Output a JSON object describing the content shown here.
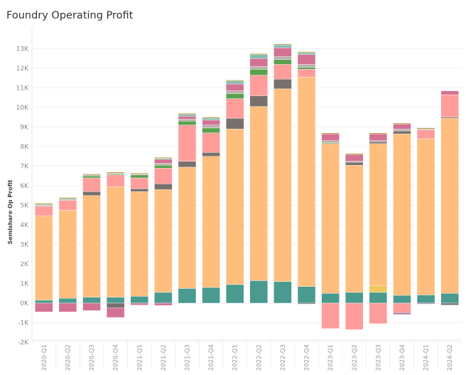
{
  "title": "Foundry Operating Profit",
  "chart_data": {
    "type": "bar",
    "stacked": true,
    "title": "Foundry Operating Profit",
    "xlabel": "",
    "ylabel": "Semishare Op Profit",
    "ylim": [
      -2000,
      13500
    ],
    "yticks": [
      -2000,
      -1000,
      0,
      1000,
      2000,
      3000,
      4000,
      5000,
      6000,
      7000,
      8000,
      9000,
      10000,
      11000,
      12000,
      13000
    ],
    "ytick_labels": [
      "-2K",
      "-1K",
      "0K",
      "1K",
      "2K",
      "3K",
      "4K",
      "5K",
      "6K",
      "7K",
      "8K",
      "9K",
      "10K",
      "11K",
      "12K",
      "13K"
    ],
    "grid": true,
    "legend": "none",
    "categories": [
      "2020-Q1",
      "2020-Q2",
      "2020-Q3",
      "2020-Q4",
      "2021-Q1",
      "2021-Q2",
      "2021-Q3",
      "2021-Q4",
      "2022-Q1",
      "2022-Q2",
      "2022-Q3",
      "2022-Q4",
      "2023-Q1",
      "2023-Q2",
      "2023-Q3",
      "2023-Q4",
      "2024-Q1",
      "2024-Q2"
    ],
    "series": [
      {
        "color": "#4a9a8f",
        "values": [
          150,
          250,
          300,
          300,
          350,
          550,
          750,
          800,
          950,
          1150,
          1100,
          850,
          500,
          550,
          550,
          400,
          420,
          500
        ]
      },
      {
        "color": "#edc95e",
        "values": [
          0,
          0,
          0,
          0,
          0,
          0,
          0,
          0,
          0,
          0,
          0,
          0,
          0,
          0,
          350,
          0,
          0,
          0
        ]
      },
      {
        "color": "#ffbe7d",
        "values": [
          4300,
          4500,
          5200,
          5650,
          5350,
          5250,
          6200,
          6700,
          7950,
          8900,
          9850,
          10700,
          7650,
          6500,
          7250,
          8250,
          7980,
          8950
        ]
      },
      {
        "color": "#79706e",
        "values": [
          0,
          0,
          200,
          0,
          150,
          300,
          300,
          200,
          550,
          550,
          500,
          0,
          0,
          150,
          100,
          150,
          0,
          50
        ]
      },
      {
        "color": "#ff9d9a",
        "values": [
          500,
          500,
          700,
          600,
          550,
          800,
          1850,
          1000,
          1000,
          1050,
          750,
          400,
          0,
          0,
          0,
          0,
          450,
          1150
        ]
      },
      {
        "color": "#59a14f",
        "values": [
          0,
          0,
          100,
          50,
          150,
          150,
          200,
          250,
          250,
          300,
          250,
          100,
          50,
          0,
          0,
          0,
          0,
          0
        ]
      },
      {
        "color": "#bab0ac",
        "values": [
          50,
          50,
          50,
          50,
          50,
          100,
          100,
          150,
          150,
          150,
          150,
          150,
          100,
          50,
          50,
          100,
          50,
          0
        ]
      },
      {
        "color": "#d37295",
        "values": [
          0,
          0,
          0,
          0,
          0,
          200,
          150,
          250,
          350,
          400,
          450,
          500,
          350,
          350,
          350,
          250,
          0,
          200
        ]
      },
      {
        "color": "#86bcb6",
        "values": [
          50,
          50,
          0,
          0,
          0,
          50,
          100,
          100,
          150,
          200,
          150,
          100,
          0,
          0,
          0,
          0,
          0,
          0
        ]
      },
      {
        "color": "#b6992d",
        "values": [
          50,
          50,
          50,
          50,
          50,
          50,
          50,
          50,
          50,
          50,
          50,
          50,
          50,
          50,
          50,
          50,
          50,
          0
        ]
      },
      {
        "color": "#79706e",
        "values": [
          0,
          0,
          0,
          -250,
          0,
          0,
          0,
          0,
          0,
          0,
          0,
          -50,
          0,
          0,
          0,
          0,
          0,
          -100
        ]
      },
      {
        "color": "#d37295",
        "values": [
          -450,
          -450,
          -380,
          -480,
          -100,
          -120,
          0,
          0,
          0,
          0,
          0,
          0,
          0,
          0,
          0,
          0,
          0,
          0
        ]
      },
      {
        "color": "#ff9d9a",
        "values": [
          0,
          0,
          0,
          0,
          0,
          0,
          0,
          0,
          0,
          0,
          0,
          0,
          -1300,
          -1350,
          -1050,
          -480,
          0,
          0
        ]
      },
      {
        "color": "#b07aa1",
        "values": [
          0,
          0,
          0,
          0,
          0,
          0,
          0,
          0,
          0,
          0,
          0,
          0,
          0,
          0,
          0,
          -100,
          -50,
          0
        ]
      }
    ]
  }
}
